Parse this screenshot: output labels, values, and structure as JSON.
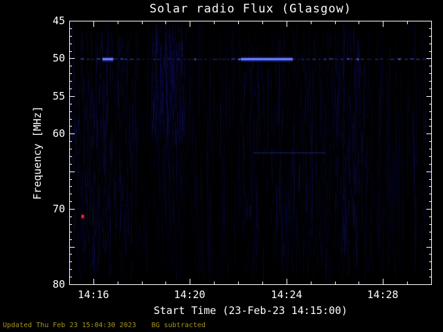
{
  "chart_data": {
    "type": "heatmap",
    "title": "Solar radio Flux (Glasgow)",
    "xlabel": "Start Time (23-Feb-23 14:15:00)",
    "ylabel": "Frequency [MHz]",
    "x_start": "14:15:00",
    "x_minutes_span": 15,
    "x_ticks": [
      {
        "minute": 1,
        "label": "14:16"
      },
      {
        "minute": 5,
        "label": "14:20"
      },
      {
        "minute": 9,
        "label": "14:24"
      },
      {
        "minute": 13,
        "label": "14:28"
      }
    ],
    "ylim": [
      45,
      80
    ],
    "y_axis_inverted": true,
    "y_major_ticks": [
      45,
      50,
      55,
      60,
      65,
      70,
      75,
      80
    ],
    "y_tick_labels": [
      {
        "freq": 45,
        "label": "45"
      },
      {
        "freq": 50,
        "label": "50"
      },
      {
        "freq": 55,
        "label": "55"
      },
      {
        "freq": 60,
        "label": "60"
      },
      {
        "freq": 70,
        "label": "70"
      },
      {
        "freq": 80,
        "label": "80"
      }
    ],
    "features": [
      {
        "kind": "noise",
        "density": 1500
      },
      {
        "kind": "noise_cluster",
        "t0": 0.0,
        "t1": 2.6,
        "f0": 45,
        "f1": 80,
        "count": 380
      },
      {
        "kind": "noise_cluster",
        "t0": 3.4,
        "t1": 4.8,
        "f0": 45,
        "f1": 62,
        "count": 300
      },
      {
        "kind": "noise_cluster",
        "t0": 7.0,
        "t1": 12.0,
        "f0": 45,
        "f1": 80,
        "count": 320
      },
      {
        "kind": "noise_cluster",
        "t0": 11.0,
        "t1": 12.4,
        "f0": 45,
        "f1": 76,
        "count": 140
      },
      {
        "kind": "rfi_line",
        "freq": 50.0,
        "t0": 0.45,
        "t1": 15.0,
        "style": "dashed",
        "level": "medium"
      },
      {
        "kind": "rfi_line",
        "freq": 50.0,
        "t0": 1.35,
        "t1": 1.8,
        "style": "solid",
        "level": "bright"
      },
      {
        "kind": "rfi_line",
        "freq": 50.0,
        "t0": 7.1,
        "t1": 9.25,
        "style": "solid",
        "level": "bright"
      },
      {
        "kind": "rfi_line",
        "freq": 62.5,
        "t0": 7.6,
        "t1": 10.6,
        "style": "solid",
        "level": "faint"
      },
      {
        "kind": "point",
        "freq": 71.0,
        "t": 0.52
      }
    ]
  },
  "footer": {
    "updated": "Updated Thu Feb 23 15:04:30 2023",
    "note": "BG subtracted"
  },
  "palette": {
    "background": "#000000",
    "frame": "#ffffff",
    "text": "#ffffff",
    "footer_text": "#a6951f",
    "noise_blue": "#2323e6",
    "rfi_core": "#8093ff",
    "rfi_glow": "#2e44ff",
    "marker_red": "#ff2626"
  }
}
